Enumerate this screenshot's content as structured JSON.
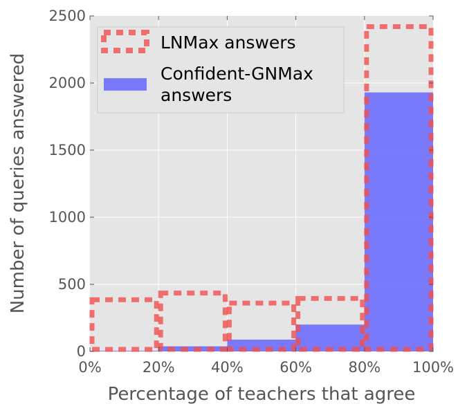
{
  "chart_data": {
    "type": "bar",
    "title": "",
    "xlabel": "Percentage of teachers that agree",
    "ylabel": "Number of queries answered",
    "xlim": [
      0,
      100
    ],
    "ylim": [
      0,
      2500
    ],
    "x_ticks": [
      0,
      20,
      40,
      60,
      80,
      100
    ],
    "x_tick_labels": [
      "0%",
      "20%",
      "40%",
      "60%",
      "80%",
      "100%"
    ],
    "y_ticks": [
      0,
      500,
      1000,
      1500,
      2000,
      2500
    ],
    "y_tick_labels": [
      "0",
      "500",
      "1000",
      "1500",
      "2000",
      "2500"
    ],
    "bins": [
      [
        0,
        20
      ],
      [
        20,
        40
      ],
      [
        40,
        60
      ],
      [
        60,
        80
      ],
      [
        80,
        100
      ]
    ],
    "grid": true,
    "legend_position": "top-left",
    "series": [
      {
        "name": "LNMax answers",
        "style": "dashed-outline",
        "color": "#f05050",
        "values": [
          385,
          435,
          360,
          395,
          2420
        ]
      },
      {
        "name": "Confident-GNMax answers",
        "style": "filled",
        "color": "#6666ff",
        "values": [
          5,
          38,
          88,
          200,
          1930
        ]
      }
    ],
    "legend": [
      {
        "lines": [
          "LNMax answers"
        ]
      },
      {
        "lines": [
          "Confident-GNMax",
          "answers"
        ]
      }
    ],
    "colors": {
      "plot_background": "#e5e5e5",
      "grid": "#ffffff",
      "text": "#555555"
    }
  }
}
